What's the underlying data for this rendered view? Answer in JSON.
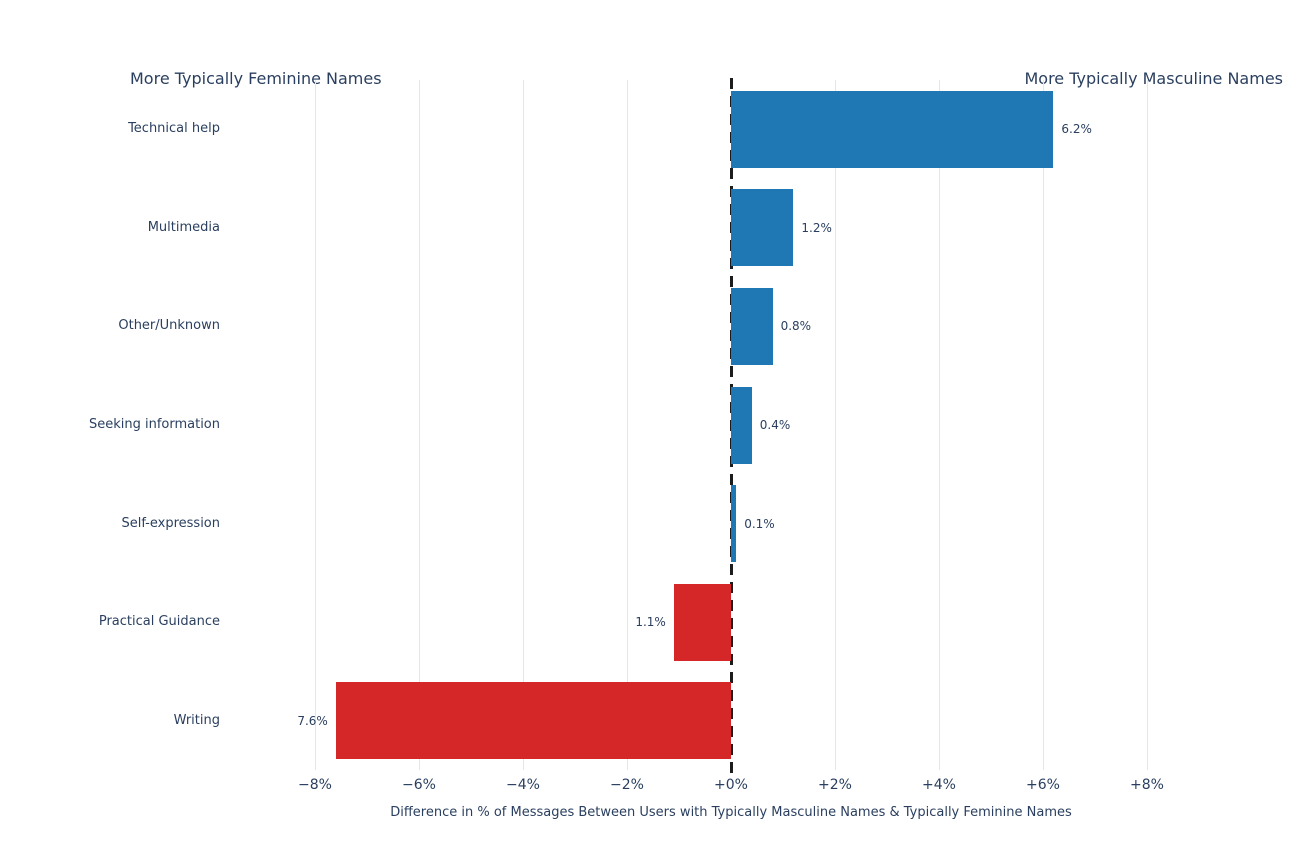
{
  "colors": {
    "positive_bar": "#1f77b4",
    "negative_bar": "#d62728",
    "text": "#2a3f5f",
    "gridline": "#e6e6e6",
    "zero_line": "#1c1c1c",
    "background": "#ffffff"
  },
  "chart_data": {
    "type": "bar",
    "orientation": "horizontal",
    "title": "",
    "categories": [
      "Technical help",
      "Multimedia",
      "Other/Unknown",
      "Seeking information",
      "Self-expression",
      "Practical Guidance",
      "Writing"
    ],
    "values": [
      6.2,
      1.2,
      0.8,
      0.4,
      0.1,
      -1.1,
      -7.6
    ],
    "bar_labels": [
      "6.2%",
      "1.2%",
      "0.8%",
      "0.4%",
      "0.1%",
      "1.1%",
      "7.6%"
    ],
    "xlabel": "Difference in % of Messages Between Users with Typically Masculine Names & Typically Feminine Names",
    "ylabel": "",
    "xlim": [
      -8.5,
      8.5
    ],
    "x_ticks": [
      {
        "value": -8,
        "label": "−8%"
      },
      {
        "value": -6,
        "label": "−6%"
      },
      {
        "value": -4,
        "label": "−4%"
      },
      {
        "value": -2,
        "label": "−2%"
      },
      {
        "value": 0,
        "label": "+0%"
      },
      {
        "value": 2,
        "label": "+2%"
      },
      {
        "value": 4,
        "label": "+4%"
      },
      {
        "value": 6,
        "label": "+6%"
      },
      {
        "value": 8,
        "label": "+8%"
      }
    ],
    "grid": "vertical-gridlines-on",
    "zero_line_style": "dashed",
    "legend": "none",
    "annotations": {
      "left": "More Typically Feminine Names",
      "right": "More Typically Masculine Names"
    }
  }
}
